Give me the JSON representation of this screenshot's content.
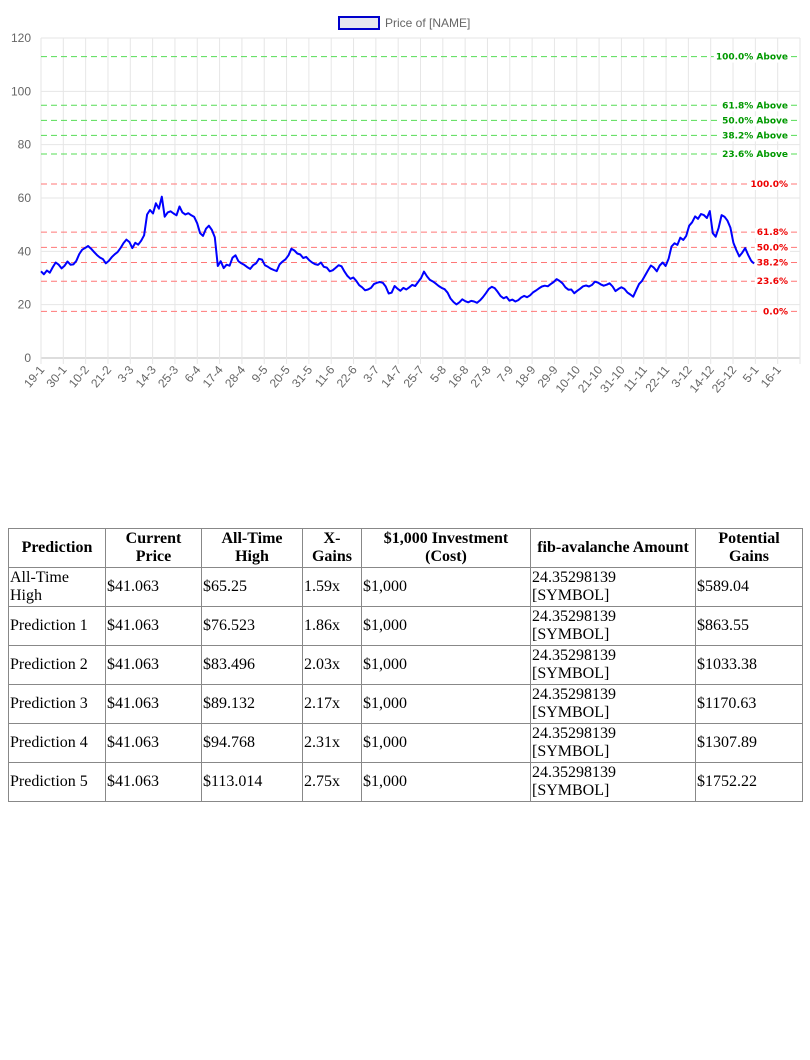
{
  "chart_data": {
    "type": "line",
    "legend": {
      "label": "Price of [NAME]",
      "position": "top"
    },
    "series": [
      {
        "name": "Price of [NAME]",
        "color": "#0000ff",
        "values": [
          32.5,
          31.4,
          32.8,
          32.0,
          34.1,
          35.8,
          35.0,
          33.6,
          34.6,
          36.2,
          35.0,
          35.1,
          36.5,
          39.0,
          40.6,
          41.3,
          42.0,
          41.0,
          39.8,
          38.6,
          37.7,
          37.1,
          35.5,
          36.4,
          37.8,
          38.9,
          39.7,
          41.2,
          43.1,
          44.4,
          43.5,
          41.2,
          43.2,
          42.5,
          44.0,
          46.0,
          53.8,
          55.5,
          54.2,
          58.0,
          56.0,
          60.5,
          53.0,
          54.6,
          55.0,
          54.2,
          53.5,
          56.8,
          54.6,
          53.8,
          54.3,
          53.5,
          52.9,
          50.5,
          46.8,
          45.8,
          48.5,
          49.6,
          48.0,
          45.3,
          34.5,
          36.3,
          33.7,
          35.0,
          34.6,
          37.6,
          38.5,
          36.3,
          35.5,
          34.9,
          34.1,
          33.4,
          34.8,
          35.5,
          37.2,
          36.9,
          34.8,
          34.2,
          33.5,
          33.0,
          32.6,
          35.1,
          36.2,
          37.0,
          38.5,
          41.0,
          40.3,
          39.2,
          38.8,
          37.5,
          37.9,
          36.7,
          35.8,
          35.2,
          34.9,
          35.8,
          34.2,
          33.9,
          32.5,
          32.9,
          33.8,
          34.8,
          34.4,
          32.4,
          30.8,
          29.7,
          30.2,
          28.9,
          27.3,
          26.5,
          25.4,
          25.7,
          26.3,
          27.7,
          28.2,
          28.5,
          28.2,
          26.8,
          24.2,
          24.5,
          27.0,
          26.0,
          25.2,
          26.3,
          25.7,
          26.5,
          27.4,
          27.0,
          28.5,
          30.0,
          32.4,
          30.6,
          29.3,
          28.7,
          27.9,
          27.0,
          26.3,
          25.8,
          24.5,
          22.3,
          21.0,
          20.1,
          20.9,
          22.0,
          21.3,
          20.9,
          21.4,
          21.2,
          20.7,
          21.6,
          22.8,
          24.3,
          25.9,
          26.7,
          26.2,
          24.8,
          23.2,
          22.4,
          22.9,
          21.5,
          21.9,
          21.2,
          21.7,
          22.7,
          23.3,
          22.8,
          23.5,
          24.6,
          25.3,
          26.1,
          26.8,
          27.1,
          26.9,
          27.7,
          28.5,
          29.6,
          28.9,
          28.0,
          26.5,
          25.6,
          25.7,
          24.3,
          25.2,
          26.0,
          26.9,
          27.2,
          26.8,
          27.4,
          28.6,
          28.3,
          27.6,
          27.1,
          27.5,
          28.0,
          26.8,
          25.1,
          25.9,
          26.5,
          25.9,
          24.6,
          23.8,
          23.0,
          25.4,
          27.8,
          28.9,
          30.9,
          32.8,
          34.7,
          33.9,
          32.5,
          34.7,
          35.8,
          34.5,
          37.2,
          41.8,
          43.0,
          42.4,
          45.1,
          44.3,
          45.8,
          49.6,
          50.9,
          53.1,
          52.2,
          54.0,
          53.6,
          52.5,
          55.1,
          46.8,
          45.5,
          48.8,
          53.6,
          53.0,
          51.5,
          48.9,
          43.2,
          40.5,
          38.1,
          39.5,
          41.2,
          38.7,
          36.5,
          35.4
        ]
      }
    ],
    "x_labels": [
      "19-1",
      "30-1",
      "10-2",
      "21-2",
      "3-3",
      "14-3",
      "25-3",
      "6-4",
      "17-4",
      "28-4",
      "9-5",
      "20-5",
      "31-5",
      "11-6",
      "22-6",
      "3-7",
      "14-7",
      "25-7",
      "5-8",
      "16-8",
      "27-8",
      "7-9",
      "18-9",
      "29-9",
      "10-10",
      "21-10",
      "31-10",
      "11-11",
      "22-11",
      "3-12",
      "14-12",
      "25-12",
      "5-1",
      "16-1"
    ],
    "ylim": [
      0,
      120
    ],
    "yticks": [
      "0",
      "20",
      "40",
      "60",
      "80",
      "100",
      "120"
    ],
    "grid": true,
    "fib_levels": [
      {
        "value": 113.014,
        "label": "100.0% Above",
        "color": "#55dd55",
        "text_color": "#009900"
      },
      {
        "value": 94.768,
        "label": "61.8% Above",
        "color": "#55dd55",
        "text_color": "#009900"
      },
      {
        "value": 89.132,
        "label": "50.0% Above",
        "color": "#55dd55",
        "text_color": "#009900"
      },
      {
        "value": 83.496,
        "label": "38.2% Above",
        "color": "#55dd55",
        "text_color": "#009900"
      },
      {
        "value": 76.523,
        "label": "23.6% Above",
        "color": "#55dd55",
        "text_color": "#009900"
      },
      {
        "value": 65.25,
        "label": "100.0%",
        "color": "#ff7777",
        "text_color": "#ee0000"
      },
      {
        "value": 47.2,
        "label": "61.8%",
        "color": "#ff7777",
        "text_color": "#ee0000"
      },
      {
        "value": 41.5,
        "label": "50.0%",
        "color": "#ff7777",
        "text_color": "#ee0000"
      },
      {
        "value": 35.8,
        "label": "38.2%",
        "color": "#ff7777",
        "text_color": "#ee0000"
      },
      {
        "value": 28.8,
        "label": "23.6%",
        "color": "#ff7777",
        "text_color": "#ee0000"
      },
      {
        "value": 17.5,
        "label": "0.0%",
        "color": "#ff7777",
        "text_color": "#ee0000"
      }
    ]
  },
  "table": {
    "headers": [
      "Prediction",
      "Current Price",
      "All-Time High",
      "X-Gains",
      "$1,000 Investment (Cost)",
      "fib-avalanche Amount",
      "Potential Gains"
    ],
    "rows": [
      [
        "All-Time High",
        "$41.063",
        "$65.25",
        "1.59x",
        "$1,000",
        "24.35298139 [SYMBOL]",
        "$589.04"
      ],
      [
        "Prediction 1",
        "$41.063",
        "$76.523",
        "1.86x",
        "$1,000",
        "24.35298139 [SYMBOL]",
        "$863.55"
      ],
      [
        "Prediction 2",
        "$41.063",
        "$83.496",
        "2.03x",
        "$1,000",
        "24.35298139 [SYMBOL]",
        "$1033.38"
      ],
      [
        "Prediction 3",
        "$41.063",
        "$89.132",
        "2.17x",
        "$1,000",
        "24.35298139 [SYMBOL]",
        "$1170.63"
      ],
      [
        "Prediction 4",
        "$41.063",
        "$94.768",
        "2.31x",
        "$1,000",
        "24.35298139 [SYMBOL]",
        "$1307.89"
      ],
      [
        "Prediction 5",
        "$41.063",
        "$113.014",
        "2.75x",
        "$1,000",
        "24.35298139 [SYMBOL]",
        "$1752.22"
      ]
    ]
  }
}
